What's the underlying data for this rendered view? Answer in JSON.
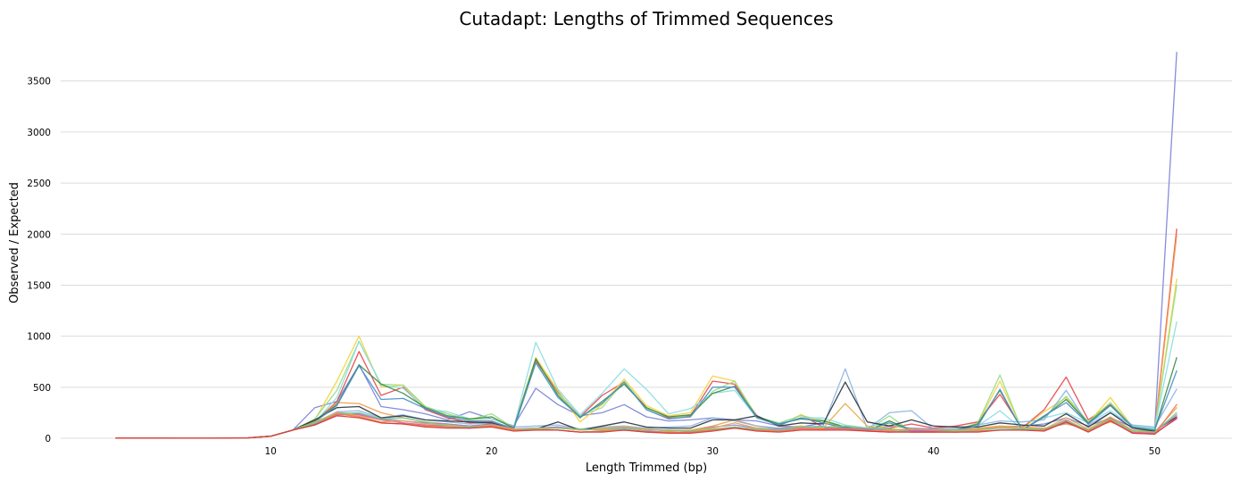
{
  "chart_data": {
    "type": "line",
    "title": "Cutadapt: Lengths of Trimmed Sequences",
    "xlabel": "Length Trimmed (bp)",
    "ylabel": "Observed / Expected",
    "xlim": [
      0.5,
      53.5
    ],
    "ylim": [
      0,
      3900
    ],
    "xticks": [
      10,
      20,
      30,
      40,
      50
    ],
    "yticks": [
      0,
      500,
      1000,
      1500,
      2000,
      2500,
      3000,
      3500
    ],
    "grid": "horizontal",
    "legend": "none",
    "x": [
      3,
      4,
      5,
      6,
      7,
      8,
      9,
      10,
      11,
      12,
      13,
      14,
      15,
      16,
      17,
      18,
      19,
      20,
      21,
      22,
      23,
      24,
      25,
      26,
      27,
      28,
      29,
      30,
      31,
      32,
      33,
      34,
      35,
      36,
      37,
      38,
      39,
      40,
      41,
      42,
      43,
      44,
      45,
      46,
      47,
      48,
      49,
      50,
      51
    ],
    "series": [
      {
        "color": "#7b83d9",
        "values": [
          2,
          2,
          2,
          1,
          1,
          2,
          4,
          20,
          80,
          300,
          360,
          720,
          310,
          280,
          240,
          180,
          260,
          190,
          120,
          490,
          330,
          220,
          250,
          330,
          210,
          170,
          180,
          200,
          180,
          170,
          120,
          110,
          150,
          100,
          90,
          120,
          100,
          90,
          80,
          90,
          110,
          120,
          140,
          200,
          120,
          200,
          110,
          90,
          3780
        ]
      },
      {
        "color": "#e8474c",
        "values": [
          2,
          2,
          2,
          1,
          1,
          2,
          4,
          20,
          80,
          160,
          360,
          850,
          420,
          500,
          280,
          200,
          150,
          160,
          100,
          760,
          450,
          210,
          420,
          550,
          300,
          200,
          220,
          560,
          530,
          220,
          120,
          230,
          110,
          100,
          90,
          100,
          140,
          100,
          120,
          160,
          430,
          100,
          280,
          600,
          180,
          330,
          120,
          80,
          2050
        ]
      },
      {
        "color": "#f39a47",
        "values": [
          2,
          2,
          2,
          1,
          1,
          2,
          4,
          20,
          80,
          150,
          350,
          340,
          250,
          200,
          160,
          140,
          120,
          140,
          90,
          100,
          110,
          90,
          100,
          110,
          90,
          80,
          80,
          120,
          180,
          120,
          100,
          120,
          100,
          110,
          100,
          90,
          80,
          80,
          90,
          100,
          120,
          110,
          100,
          140,
          90,
          160,
          80,
          70,
          1990
        ]
      },
      {
        "color": "#f2d33a",
        "values": [
          2,
          2,
          2,
          1,
          1,
          2,
          4,
          20,
          80,
          180,
          560,
          1000,
          500,
          520,
          300,
          240,
          180,
          190,
          110,
          790,
          470,
          160,
          330,
          580,
          320,
          220,
          250,
          610,
          560,
          200,
          130,
          230,
          150,
          110,
          80,
          130,
          90,
          60,
          80,
          140,
          560,
          90,
          260,
          400,
          150,
          400,
          110,
          80,
          1560
        ]
      },
      {
        "color": "#98dc87",
        "values": [
          2,
          2,
          2,
          1,
          1,
          2,
          4,
          20,
          80,
          190,
          470,
          950,
          530,
          520,
          310,
          240,
          180,
          240,
          100,
          740,
          440,
          220,
          300,
          560,
          290,
          210,
          210,
          460,
          560,
          210,
          150,
          220,
          180,
          110,
          80,
          220,
          60,
          80,
          80,
          150,
          620,
          80,
          210,
          410,
          160,
          350,
          120,
          90,
          1500
        ]
      },
      {
        "color": "#8cdde0",
        "values": [
          2,
          2,
          2,
          1,
          1,
          2,
          4,
          20,
          80,
          160,
          400,
          950,
          520,
          490,
          290,
          260,
          190,
          190,
          110,
          940,
          480,
          230,
          440,
          680,
          480,
          240,
          290,
          440,
          470,
          200,
          150,
          200,
          200,
          130,
          100,
          170,
          80,
          70,
          90,
          120,
          270,
          90,
          200,
          250,
          150,
          270,
          120,
          100,
          1140
        ]
      },
      {
        "color": "#8ab4e3",
        "values": [
          2,
          2,
          2,
          1,
          1,
          2,
          4,
          20,
          80,
          150,
          260,
          270,
          200,
          230,
          180,
          160,
          140,
          150,
          110,
          120,
          130,
          90,
          110,
          120,
          100,
          110,
          120,
          200,
          170,
          120,
          100,
          110,
          120,
          680,
          90,
          250,
          270,
          90,
          100,
          130,
          170,
          160,
          180,
          470,
          130,
          250,
          130,
          110,
          480
        ]
      },
      {
        "color": "#3d8c4a",
        "values": [
          2,
          2,
          2,
          1,
          1,
          2,
          4,
          20,
          80,
          170,
          330,
          720,
          530,
          440,
          300,
          220,
          190,
          210,
          100,
          780,
          420,
          200,
          360,
          530,
          300,
          210,
          230,
          440,
          510,
          210,
          140,
          190,
          170,
          110,
          70,
          170,
          80,
          70,
          80,
          140,
          470,
          80,
          210,
          380,
          150,
          330,
          110,
          80,
          790
        ]
      },
      {
        "color": "#2b3640",
        "values": [
          2,
          2,
          2,
          1,
          1,
          2,
          4,
          20,
          80,
          180,
          300,
          310,
          200,
          220,
          180,
          170,
          160,
          150,
          90,
          90,
          160,
          80,
          120,
          160,
          110,
          100,
          100,
          180,
          180,
          220,
          120,
          150,
          140,
          550,
          160,
          120,
          180,
          120,
          110,
          110,
          150,
          130,
          120,
          240,
          110,
          250,
          100,
          70,
          210
        ]
      },
      {
        "color": "#4a90c8",
        "values": [
          2,
          2,
          2,
          1,
          1,
          2,
          4,
          20,
          80,
          160,
          320,
          710,
          380,
          390,
          290,
          210,
          170,
          170,
          90,
          740,
          400,
          210,
          340,
          550,
          280,
          190,
          210,
          500,
          500,
          200,
          130,
          200,
          150,
          100,
          80,
          150,
          80,
          70,
          80,
          120,
          480,
          80,
          220,
          350,
          140,
          320,
          110,
          80,
          660
        ]
      },
      {
        "color": "#e05a98",
        "values": [
          2,
          2,
          2,
          1,
          1,
          2,
          4,
          20,
          80,
          140,
          230,
          230,
          180,
          150,
          130,
          120,
          100,
          130,
          80,
          90,
          80,
          60,
          70,
          80,
          70,
          60,
          60,
          80,
          110,
          80,
          70,
          100,
          90,
          90,
          70,
          60,
          70,
          70,
          60,
          70,
          80,
          80,
          80,
          180,
          70,
          200,
          60,
          50,
          190
        ]
      },
      {
        "color": "#9b7fd0",
        "values": [
          2,
          2,
          2,
          1,
          1,
          2,
          4,
          20,
          80,
          140,
          250,
          240,
          190,
          170,
          150,
          140,
          120,
          140,
          90,
          100,
          110,
          80,
          90,
          100,
          90,
          80,
          70,
          110,
          130,
          100,
          90,
          110,
          100,
          100,
          90,
          80,
          80,
          80,
          80,
          90,
          100,
          100,
          90,
          150,
          80,
          190,
          80,
          60,
          230
        ]
      },
      {
        "color": "#e8a84a",
        "values": [
          2,
          2,
          2,
          1,
          1,
          2,
          4,
          20,
          80,
          160,
          250,
          220,
          160,
          170,
          140,
          130,
          110,
          130,
          90,
          90,
          100,
          80,
          90,
          110,
          90,
          70,
          80,
          100,
          150,
          100,
          80,
          110,
          100,
          340,
          120,
          80,
          90,
          80,
          80,
          90,
          110,
          100,
          90,
          200,
          90,
          210,
          80,
          60,
          300
        ]
      },
      {
        "color": "#6fcf88",
        "values": [
          2,
          2,
          2,
          1,
          1,
          2,
          4,
          20,
          80,
          150,
          240,
          250,
          190,
          200,
          160,
          120,
          110,
          120,
          80,
          100,
          100,
          90,
          80,
          90,
          80,
          80,
          70,
          90,
          110,
          90,
          80,
          110,
          110,
          120,
          100,
          90,
          60,
          60,
          70,
          80,
          100,
          90,
          90,
          170,
          80,
          190,
          70,
          60,
          250
        ]
      },
      {
        "color": "#f07a50",
        "values": [
          2,
          2,
          2,
          1,
          1,
          2,
          4,
          20,
          80,
          130,
          240,
          210,
          150,
          140,
          120,
          110,
          100,
          120,
          80,
          80,
          80,
          60,
          70,
          80,
          60,
          60,
          60,
          80,
          100,
          80,
          70,
          90,
          90,
          90,
          80,
          70,
          60,
          60,
          60,
          70,
          80,
          80,
          80,
          160,
          70,
          180,
          50,
          40,
          330
        ]
      },
      {
        "color": "#d23a3a",
        "values": [
          2,
          2,
          2,
          1,
          1,
          2,
          4,
          20,
          80,
          130,
          220,
          200,
          150,
          140,
          110,
          100,
          100,
          110,
          70,
          80,
          80,
          60,
          60,
          80,
          60,
          50,
          50,
          70,
          100,
          70,
          60,
          80,
          80,
          80,
          70,
          60,
          60,
          60,
          60,
          60,
          80,
          80,
          70,
          160,
          60,
          170,
          50,
          40,
          200
        ]
      }
    ]
  }
}
